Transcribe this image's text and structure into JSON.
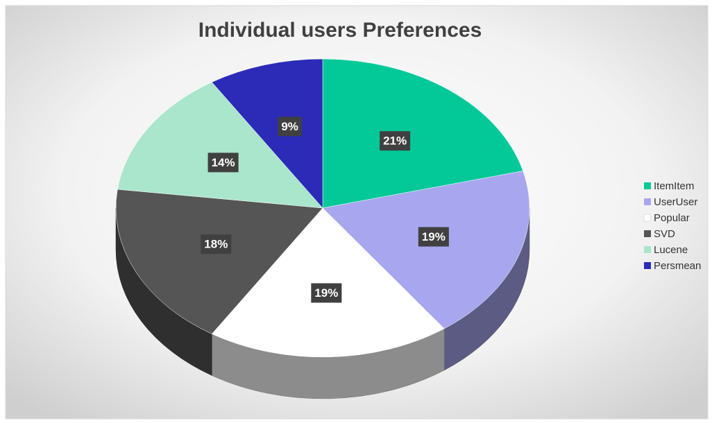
{
  "chart_data": {
    "type": "pie",
    "title": "Individual users Preferences",
    "categories": [
      "ItemItem",
      "UserUser",
      "Popular",
      "SVD",
      "Lucene",
      "Persmean"
    ],
    "values": [
      21,
      19,
      19,
      18,
      14,
      9
    ],
    "value_labels": [
      "21%",
      "19%",
      "19%",
      "18%",
      "14%",
      "9%"
    ],
    "colors": [
      "#03c999",
      "#a8a6ee",
      "#ffffff",
      "#555555",
      "#a9e6cc",
      "#2b2bb8"
    ],
    "legend": "right"
  }
}
